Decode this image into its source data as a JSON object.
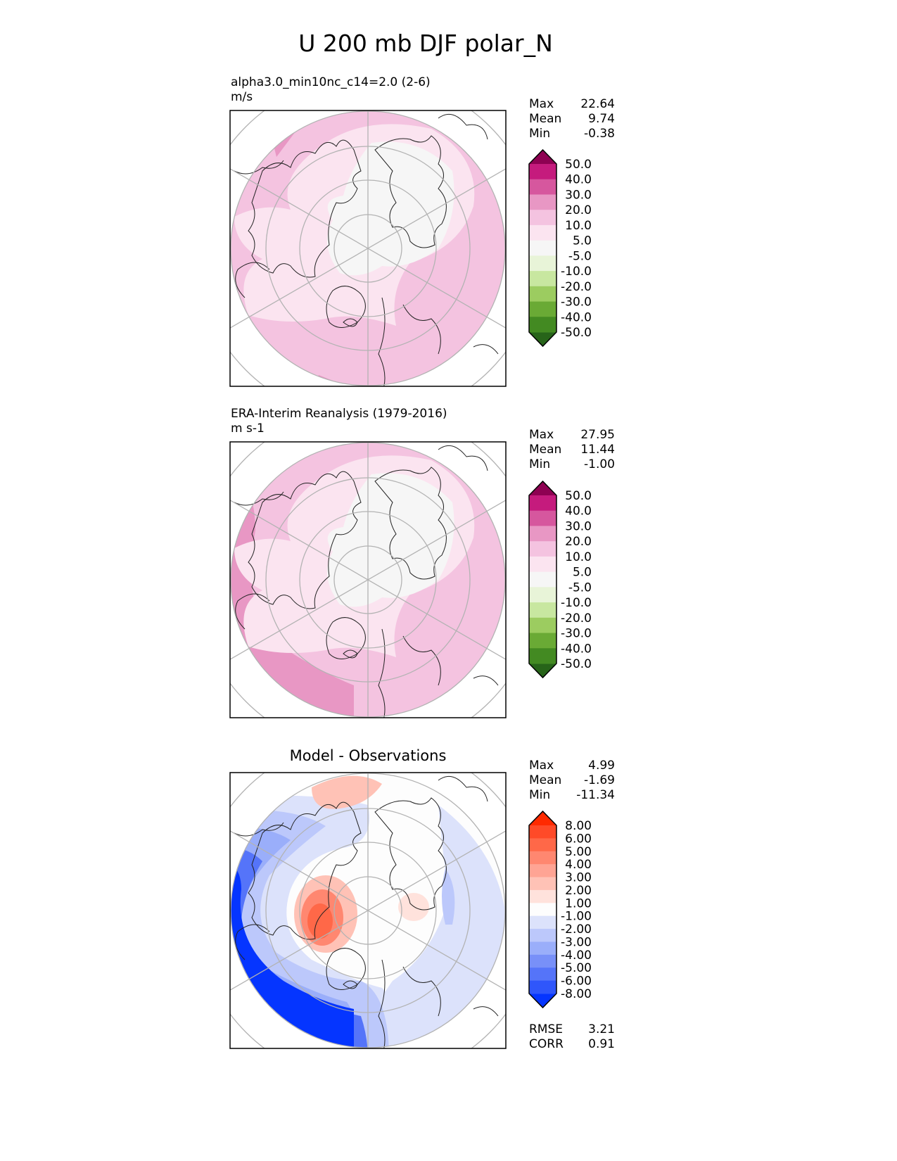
{
  "figure_title": "U 200 mb DJF polar_N",
  "chart_data": [
    {
      "type": "heatmap",
      "projection": "north polar stereographic",
      "title_lines": [
        "alpha3.0_min10nc_c14=2.0 (2-6)",
        "m/s"
      ],
      "stats": [
        {
          "label": "Max",
          "value": "22.64"
        },
        {
          "label": "Mean",
          "value": "9.74"
        },
        {
          "label": "Min",
          "value": "-0.38"
        }
      ],
      "colorbar": {
        "ticks": [
          "50.0",
          "40.0",
          "30.0",
          "20.0",
          "10.0",
          "5.0",
          "-5.0",
          "-10.0",
          "-20.0",
          "-30.0",
          "-40.0",
          "-50.0"
        ],
        "colors": [
          "#8e0152",
          "#c51b7d",
          "#d6579e",
          "#e897c4",
          "#f4c3e0",
          "#fbe4f0",
          "#f6f6f6",
          "#e8f4d8",
          "#c8e7a0",
          "#9ccc60",
          "#6aaa35",
          "#438a22",
          "#276419"
        ]
      },
      "fill_colors": {
        "base": "#f4c3e0",
        "light": "#fbe4f0",
        "neutral": "#f6f6f6",
        "strong": "#e897c4"
      }
    },
    {
      "type": "heatmap",
      "projection": "north polar stereographic",
      "title_lines": [
        "ERA-Interim Reanalysis (1979-2016)",
        "m s-1"
      ],
      "stats": [
        {
          "label": "Max",
          "value": "27.95"
        },
        {
          "label": "Mean",
          "value": "11.44"
        },
        {
          "label": "Min",
          "value": "-1.00"
        }
      ],
      "colorbar": {
        "ticks": [
          "50.0",
          "40.0",
          "30.0",
          "20.0",
          "10.0",
          "5.0",
          "-5.0",
          "-10.0",
          "-20.0",
          "-30.0",
          "-40.0",
          "-50.0"
        ],
        "colors": [
          "#8e0152",
          "#c51b7d",
          "#d6579e",
          "#e897c4",
          "#f4c3e0",
          "#fbe4f0",
          "#f6f6f6",
          "#e8f4d8",
          "#c8e7a0",
          "#9ccc60",
          "#6aaa35",
          "#438a22",
          "#276419"
        ]
      },
      "fill_colors": {
        "base": "#f4c3e0",
        "light": "#fbe4f0",
        "neutral": "#f6f6f6",
        "strong": "#e897c4"
      }
    },
    {
      "type": "heatmap",
      "projection": "north polar stereographic",
      "title": "Model - Observations",
      "stats": [
        {
          "label": "Max",
          "value": "4.99"
        },
        {
          "label": "Mean",
          "value": "-1.69"
        },
        {
          "label": "Min",
          "value": "-11.34"
        }
      ],
      "extra_stats": [
        {
          "label": "RMSE",
          "value": "3.21"
        },
        {
          "label": "CORR",
          "value": "0.91"
        }
      ],
      "colorbar": {
        "ticks": [
          "8.00",
          "6.00",
          "5.00",
          "4.00",
          "3.00",
          "2.00",
          "1.00",
          "-1.00",
          "-2.00",
          "-3.00",
          "-4.00",
          "-5.00",
          "-6.00",
          "-8.00"
        ],
        "colors": [
          "#ff2a00",
          "#ff4a28",
          "#ff6848",
          "#ff8770",
          "#ffa494",
          "#ffc2b6",
          "#ffe2dc",
          "#fdfdfd",
          "#dce2fb",
          "#bcc8fb",
          "#9aaefa",
          "#7890f8",
          "#5574f9",
          "#2f56fb",
          "#0535ff"
        ]
      }
    }
  ]
}
